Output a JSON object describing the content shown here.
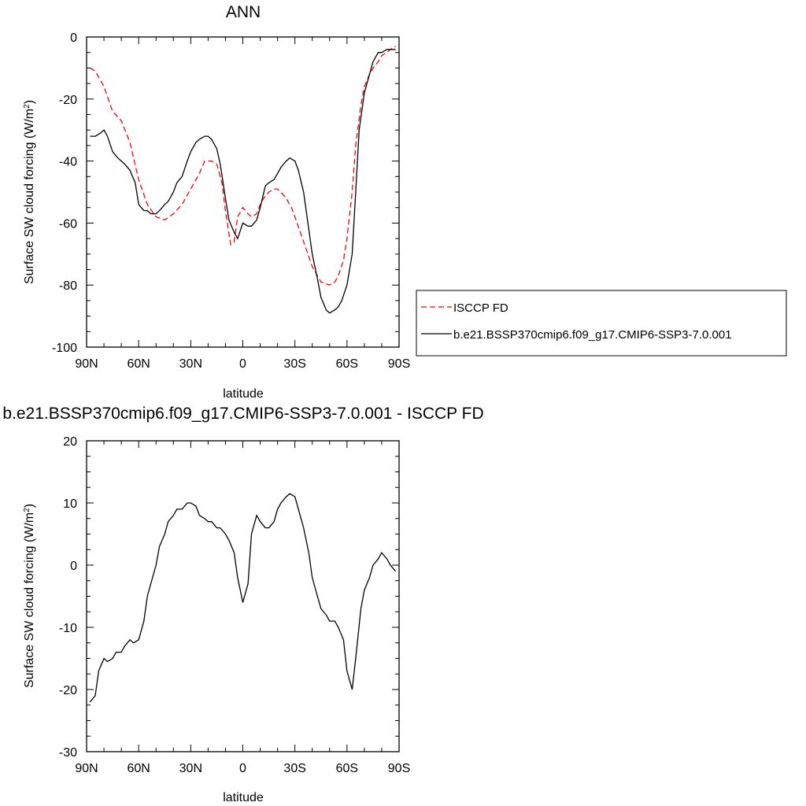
{
  "chart_data": [
    {
      "type": "line",
      "title": "ANN",
      "xlabel": "latitude",
      "ylabel": "Surface SW cloud forcing (W/m",
      "ylabel_sup": "2",
      "ylabel_close": ")",
      "xlim": [
        90,
        -90
      ],
      "ylim": [
        -100,
        0
      ],
      "xticks": [
        90,
        60,
        30,
        0,
        -30,
        -60,
        -90
      ],
      "xticklabels": [
        "90N",
        "60N",
        "30N",
        "0",
        "30S",
        "60S",
        "90S"
      ],
      "yticks": [
        -100,
        -80,
        -60,
        -40,
        -20,
        0
      ],
      "yticklabels": [
        "-100",
        "-80",
        "-60",
        "-40",
        "-20",
        "0"
      ],
      "grid": false,
      "legend_position": "right",
      "series": [
        {
          "name": "ISCCP FD",
          "color": "#ff0000",
          "dash": "dashed",
          "x": [
            88,
            85,
            80,
            75,
            70,
            65,
            60,
            55,
            50,
            45,
            40,
            35,
            30,
            25,
            22,
            18,
            15,
            12,
            10,
            7,
            5,
            3,
            0,
            -3,
            -5,
            -8,
            -10,
            -12,
            -15,
            -18,
            -20,
            -22,
            -25,
            -28,
            -30,
            -35,
            -40,
            -45,
            -50,
            -53,
            -55,
            -58,
            -60,
            -63,
            -65,
            -68,
            -70,
            -73,
            -75,
            -78,
            -80,
            -83,
            -85,
            -88
          ],
          "y": [
            -10,
            -11,
            -16,
            -24,
            -27,
            -34,
            -46,
            -54,
            -58,
            -59,
            -57,
            -54,
            -49,
            -44,
            -40,
            -40,
            -41,
            -47,
            -56,
            -67,
            -66,
            -58,
            -55,
            -57,
            -58,
            -57,
            -54,
            -52,
            -50,
            -49,
            -49,
            -50,
            -52,
            -55,
            -58,
            -66,
            -74,
            -79,
            -80,
            -79,
            -77,
            -72,
            -65,
            -50,
            -35,
            -22,
            -16,
            -12,
            -10,
            -8,
            -6,
            -5,
            -4,
            -3
          ]
        },
        {
          "name": "b.e21.BSSP370cmip6.f09_g17.CMIP6-SSP3-7.0.001",
          "color": "#000000",
          "dash": "solid",
          "x": [
            88,
            85,
            82,
            80,
            78,
            75,
            72,
            70,
            68,
            65,
            62,
            60,
            57,
            55,
            53,
            50,
            48,
            45,
            43,
            40,
            38,
            35,
            32,
            30,
            27,
            25,
            22,
            20,
            18,
            15,
            13,
            10,
            8,
            5,
            3,
            0,
            -3,
            -5,
            -8,
            -10,
            -13,
            -15,
            -18,
            -20,
            -22,
            -25,
            -27,
            -30,
            -32,
            -35,
            -38,
            -40,
            -43,
            -45,
            -48,
            -50,
            -53,
            -55,
            -57,
            -60,
            -63,
            -65,
            -67,
            -70,
            -73,
            -75,
            -78,
            -80,
            -83,
            -85,
            -88
          ],
          "y": [
            -32,
            -32,
            -31,
            -30,
            -32,
            -37,
            -39,
            -40,
            -41,
            -43,
            -47,
            -54,
            -56,
            -56,
            -57,
            -57,
            -56,
            -54,
            -53,
            -50,
            -47,
            -45,
            -40,
            -37,
            -34,
            -33,
            -32,
            -32,
            -33,
            -36,
            -41,
            -52,
            -59,
            -63,
            -65,
            -60,
            -61,
            -61,
            -59,
            -55,
            -48,
            -47,
            -46,
            -44,
            -42,
            -40,
            -39,
            -40,
            -43,
            -50,
            -62,
            -70,
            -78,
            -84,
            -88,
            -89,
            -88,
            -87,
            -85,
            -80,
            -70,
            -50,
            -30,
            -18,
            -12,
            -8,
            -5,
            -5,
            -4,
            -4,
            -4
          ]
        }
      ]
    },
    {
      "type": "line",
      "title": "b.e21.BSSP370cmip6.f09_g17.CMIP6-SSP3-7.0.001 - ISCCP FD",
      "xlabel": "latitude",
      "ylabel": "Surface SW cloud forcing (W/m",
      "ylabel_sup": "2",
      "ylabel_close": ")",
      "xlim": [
        90,
        -90
      ],
      "ylim": [
        -30,
        20
      ],
      "xticks": [
        90,
        60,
        30,
        0,
        -30,
        -60,
        -90
      ],
      "xticklabels": [
        "90N",
        "60N",
        "30N",
        "0",
        "30S",
        "60S",
        "90S"
      ],
      "yticks": [
        -30,
        -20,
        -10,
        0,
        10,
        20
      ],
      "yticklabels": [
        "-30",
        "-20",
        "-10",
        "0",
        "10",
        "20"
      ],
      "grid": false,
      "series": [
        {
          "color": "#000000",
          "dash": "solid",
          "x": [
            88,
            85,
            83,
            80,
            78,
            75,
            73,
            70,
            68,
            65,
            63,
            60,
            57,
            55,
            53,
            50,
            48,
            45,
            43,
            40,
            38,
            35,
            32,
            30,
            27,
            25,
            22,
            20,
            18,
            15,
            13,
            10,
            8,
            5,
            3,
            0,
            -3,
            -5,
            -8,
            -10,
            -13,
            -15,
            -18,
            -20,
            -22,
            -25,
            -27,
            -30,
            -32,
            -35,
            -38,
            -40,
            -43,
            -45,
            -48,
            -50,
            -53,
            -55,
            -58,
            -60,
            -63,
            -65,
            -68,
            -70,
            -73,
            -75,
            -78,
            -80,
            -83,
            -85,
            -88
          ],
          "y": [
            -22,
            -21,
            -17,
            -15,
            -15.5,
            -15,
            -14,
            -14,
            -13,
            -12,
            -12.5,
            -12,
            -9,
            -5,
            -3,
            0,
            3,
            5,
            7,
            8,
            9,
            9,
            10,
            10,
            9.5,
            8,
            7.5,
            7,
            7,
            6,
            6,
            5,
            4,
            2,
            -2,
            -6,
            -3,
            5,
            8,
            7,
            6,
            6,
            7,
            9,
            10,
            11,
            11.5,
            11,
            9,
            6,
            2,
            -2,
            -5,
            -7,
            -8,
            -9,
            -9,
            -10,
            -12,
            -17,
            -20,
            -15,
            -7,
            -4,
            -2,
            0,
            1,
            2,
            1,
            0,
            -1
          ]
        }
      ]
    }
  ]
}
